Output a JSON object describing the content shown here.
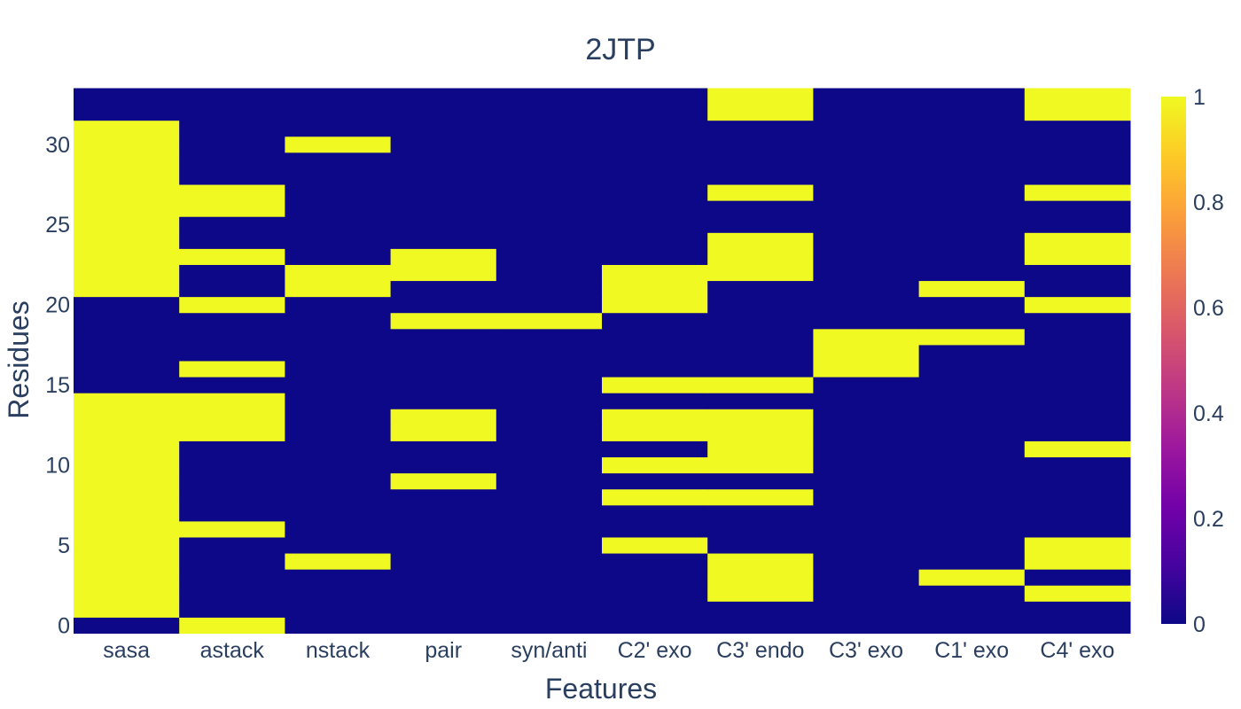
{
  "chart_data": {
    "type": "heatmap",
    "title": "2JTP",
    "xlabel": "Features",
    "ylabel": "Residues",
    "x_categories": [
      "sasa",
      "astack",
      "nstack",
      "pair",
      "syn/anti",
      "C2' exo",
      "C3' endo",
      "C3' exo",
      "C1' exo",
      "C4' exo"
    ],
    "y_range": [
      0,
      33
    ],
    "y_ticks": [
      0,
      5,
      10,
      15,
      20,
      25,
      30
    ],
    "colorscale": "plasma",
    "zmin": 0,
    "zmax": 1,
    "colorbar_ticks": [
      "0",
      "0.2",
      "0.4",
      "0.6",
      "0.8",
      "1"
    ],
    "colors": {
      "low": "#0d0887",
      "high": "#f0f921"
    },
    "z_by_residue": [
      [
        0,
        1,
        0,
        0,
        0,
        0,
        0,
        0,
        0,
        0
      ],
      [
        1,
        0,
        0,
        0,
        0,
        0,
        0,
        0,
        0,
        0
      ],
      [
        1,
        0,
        0,
        0,
        0,
        0,
        1,
        0,
        0,
        1
      ],
      [
        1,
        0,
        0,
        0,
        0,
        0,
        1,
        0,
        1,
        0
      ],
      [
        1,
        0,
        1,
        0,
        0,
        0,
        1,
        0,
        0,
        1
      ],
      [
        1,
        0,
        0,
        0,
        0,
        1,
        0,
        0,
        0,
        1
      ],
      [
        1,
        1,
        0,
        0,
        0,
        0,
        0,
        0,
        0,
        0
      ],
      [
        1,
        0,
        0,
        0,
        0,
        0,
        0,
        0,
        0,
        0
      ],
      [
        1,
        0,
        0,
        0,
        0,
        1,
        1,
        0,
        0,
        0
      ],
      [
        1,
        0,
        0,
        1,
        0,
        0,
        0,
        0,
        0,
        0
      ],
      [
        1,
        0,
        0,
        0,
        0,
        1,
        1,
        0,
        0,
        0
      ],
      [
        1,
        0,
        0,
        0,
        0,
        0,
        1,
        0,
        0,
        1
      ],
      [
        1,
        1,
        0,
        1,
        0,
        1,
        1,
        0,
        0,
        0
      ],
      [
        1,
        1,
        0,
        1,
        0,
        1,
        1,
        0,
        0,
        0
      ],
      [
        1,
        1,
        0,
        0,
        0,
        0,
        0,
        0,
        0,
        0
      ],
      [
        0,
        0,
        0,
        0,
        0,
        1,
        1,
        0,
        0,
        0
      ],
      [
        0,
        1,
        0,
        0,
        0,
        0,
        0,
        1,
        0,
        0
      ],
      [
        0,
        0,
        0,
        0,
        0,
        0,
        0,
        1,
        0,
        0
      ],
      [
        0,
        0,
        0,
        0,
        0,
        0,
        0,
        1,
        1,
        0
      ],
      [
        0,
        0,
        0,
        1,
        1,
        0,
        0,
        0,
        0,
        0
      ],
      [
        0,
        1,
        0,
        0,
        0,
        1,
        0,
        0,
        0,
        1
      ],
      [
        1,
        0,
        1,
        0,
        0,
        1,
        0,
        0,
        1,
        0
      ],
      [
        1,
        0,
        1,
        1,
        0,
        1,
        1,
        0,
        0,
        0
      ],
      [
        1,
        1,
        0,
        1,
        0,
        0,
        1,
        0,
        0,
        1
      ],
      [
        1,
        0,
        0,
        0,
        0,
        0,
        1,
        0,
        0,
        1
      ],
      [
        1,
        0,
        0,
        0,
        0,
        0,
        0,
        0,
        0,
        0
      ],
      [
        1,
        1,
        0,
        0,
        0,
        0,
        0,
        0,
        0,
        0
      ],
      [
        1,
        1,
        0,
        0,
        0,
        0,
        1,
        0,
        0,
        1
      ],
      [
        1,
        0,
        0,
        0,
        0,
        0,
        0,
        0,
        0,
        0
      ],
      [
        1,
        0,
        0,
        0,
        0,
        0,
        0,
        0,
        0,
        0
      ],
      [
        1,
        0,
        1,
        0,
        0,
        0,
        0,
        0,
        0,
        0
      ],
      [
        1,
        0,
        0,
        0,
        0,
        0,
        0,
        0,
        0,
        0
      ],
      [
        0,
        0,
        0,
        0,
        0,
        0,
        1,
        0,
        0,
        1
      ],
      [
        0,
        0,
        0,
        0,
        0,
        0,
        1,
        0,
        0,
        1
      ]
    ]
  }
}
